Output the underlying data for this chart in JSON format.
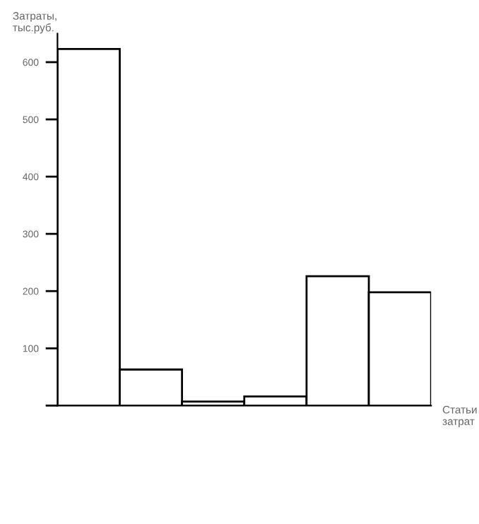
{
  "chart_data": {
    "type": "bar",
    "xlabel": "Статьи\nзатрат",
    "ylabel": "Затраты,\nтыс.руб.",
    "categories": [
      null,
      null,
      null,
      null,
      null,
      null
    ],
    "values": [
      623,
      63,
      7,
      16,
      226,
      198
    ],
    "color": "#ffffff",
    "ylim": [
      0,
      650
    ],
    "yticks": [
      {
        "value": 0,
        "label": null
      },
      100,
      200,
      300,
      400,
      500,
      600
    ],
    "grid": false,
    "legend": false
  }
}
